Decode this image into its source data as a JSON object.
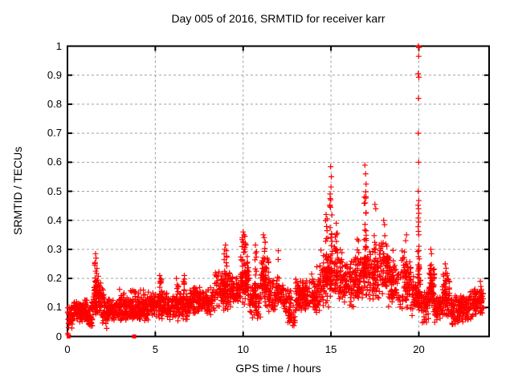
{
  "chart_data": {
    "type": "scatter",
    "title": "Day 005 of 2016, SRMTID for receiver karr",
    "xlabel": "GPS time / hours",
    "ylabel": "SRMTID / TECUs",
    "xlim": [
      0,
      24
    ],
    "ylim": [
      0,
      1
    ],
    "xticks": [
      {
        "value": 0,
        "label": "0"
      },
      {
        "value": 5,
        "label": "5"
      },
      {
        "value": 10,
        "label": "10"
      },
      {
        "value": 15,
        "label": "15"
      },
      {
        "value": 20,
        "label": "20"
      }
    ],
    "yticks": [
      {
        "value": 0.0,
        "label": "0"
      },
      {
        "value": 0.1,
        "label": "0.1"
      },
      {
        "value": 0.2,
        "label": "0.2"
      },
      {
        "value": 0.3,
        "label": "0.3"
      },
      {
        "value": 0.4,
        "label": "0.4"
      },
      {
        "value": 0.5,
        "label": "0.5"
      },
      {
        "value": 0.6,
        "label": "0.6"
      },
      {
        "value": 0.7,
        "label": "0.7"
      },
      {
        "value": 0.8,
        "label": "0.8"
      },
      {
        "value": 0.9,
        "label": "0.9"
      },
      {
        "value": 1.0,
        "label": "1"
      }
    ],
    "grid": true,
    "legend": null,
    "background": "#ffffff",
    "axis_color": "#000000",
    "grid_color": "#a0a0a0",
    "marker": {
      "shape": "plus",
      "color": "#ff0000",
      "size": 7
    },
    "points_model": {
      "seed": 20160105,
      "bands": [
        [
          0.0,
          0.35,
          0.02,
          0.11,
          40
        ],
        [
          0.35,
          1.45,
          0.05,
          0.13,
          130
        ],
        [
          1.2,
          1.5,
          0.02,
          0.07,
          12
        ],
        [
          1.45,
          1.8,
          0.07,
          0.22,
          45
        ],
        [
          1.8,
          2.15,
          0.07,
          0.19,
          40
        ],
        [
          2.0,
          2.35,
          0.02,
          0.09,
          15
        ],
        [
          2.15,
          2.65,
          0.06,
          0.13,
          55
        ],
        [
          2.65,
          4.6,
          0.055,
          0.135,
          240
        ],
        [
          2.9,
          4.5,
          0.125,
          0.165,
          22
        ],
        [
          4.6,
          5.6,
          0.06,
          0.155,
          115
        ],
        [
          5.6,
          6.9,
          0.05,
          0.15,
          145
        ],
        [
          6.9,
          8.4,
          0.075,
          0.17,
          175
        ],
        [
          8.4,
          9.3,
          0.09,
          0.23,
          110
        ],
        [
          9.3,
          9.85,
          0.1,
          0.21,
          60
        ],
        [
          9.85,
          10.35,
          0.11,
          0.28,
          75
        ],
        [
          10.35,
          11.0,
          0.06,
          0.2,
          70
        ],
        [
          11.0,
          11.45,
          0.1,
          0.28,
          55
        ],
        [
          11.45,
          12.3,
          0.08,
          0.2,
          85
        ],
        [
          12.3,
          12.75,
          0.07,
          0.17,
          40
        ],
        [
          12.55,
          12.95,
          0.02,
          0.11,
          25
        ],
        [
          12.95,
          14.35,
          0.08,
          0.2,
          165
        ],
        [
          14.35,
          14.95,
          0.1,
          0.3,
          70
        ],
        [
          14.95,
          15.65,
          0.12,
          0.32,
          75
        ],
        [
          15.65,
          16.35,
          0.1,
          0.26,
          80
        ],
        [
          16.35,
          16.8,
          0.12,
          0.3,
          50
        ],
        [
          16.8,
          17.2,
          0.14,
          0.32,
          45
        ],
        [
          17.2,
          17.75,
          0.12,
          0.32,
          60
        ],
        [
          17.75,
          18.25,
          0.14,
          0.33,
          55
        ],
        [
          18.25,
          18.85,
          0.1,
          0.28,
          60
        ],
        [
          18.85,
          19.55,
          0.08,
          0.3,
          65
        ],
        [
          19.55,
          19.9,
          0.07,
          0.22,
          32
        ],
        [
          19.85,
          20.15,
          0.08,
          0.2,
          30
        ],
        [
          20.15,
          20.55,
          0.04,
          0.16,
          48
        ],
        [
          20.55,
          20.9,
          0.08,
          0.26,
          48
        ],
        [
          20.9,
          21.35,
          0.04,
          0.15,
          55
        ],
        [
          21.35,
          21.75,
          0.06,
          0.22,
          52
        ],
        [
          21.75,
          22.4,
          0.04,
          0.14,
          75
        ],
        [
          22.4,
          22.85,
          0.05,
          0.15,
          58
        ],
        [
          22.85,
          23.45,
          0.06,
          0.17,
          60
        ],
        [
          23.45,
          23.7,
          0.08,
          0.18,
          25
        ]
      ],
      "columns": [
        [
          1.62,
          0.07,
          0.1,
          0.26,
          26
        ],
        [
          5.3,
          0.08,
          0.13,
          0.2,
          14
        ],
        [
          6.25,
          0.06,
          0.12,
          0.19,
          10
        ],
        [
          6.62,
          0.05,
          0.12,
          0.2,
          10
        ],
        [
          9.0,
          0.1,
          0.14,
          0.29,
          18
        ],
        [
          10.05,
          0.12,
          0.15,
          0.34,
          26
        ],
        [
          10.7,
          0.06,
          0.12,
          0.3,
          12
        ],
        [
          11.2,
          0.1,
          0.15,
          0.33,
          18
        ],
        [
          12.0,
          0.07,
          0.13,
          0.28,
          12
        ],
        [
          13.4,
          0.06,
          0.12,
          0.21,
          10
        ],
        [
          14.75,
          0.08,
          0.18,
          0.4,
          18
        ],
        [
          15.0,
          0.06,
          0.18,
          0.5,
          26
        ],
        [
          15.3,
          0.07,
          0.16,
          0.38,
          16
        ],
        [
          16.55,
          0.08,
          0.15,
          0.33,
          12
        ],
        [
          16.95,
          0.07,
          0.2,
          0.5,
          30
        ],
        [
          17.5,
          0.06,
          0.18,
          0.4,
          12
        ],
        [
          18.0,
          0.07,
          0.18,
          0.37,
          12
        ],
        [
          18.5,
          0.06,
          0.14,
          0.33,
          12
        ],
        [
          19.3,
          0.08,
          0.12,
          0.33,
          14
        ],
        [
          19.98,
          0.05,
          0.1,
          0.34,
          30
        ],
        [
          20.68,
          0.06,
          0.12,
          0.28,
          12
        ],
        [
          21.5,
          0.07,
          0.1,
          0.22,
          14
        ],
        [
          23.55,
          0.06,
          0.08,
          0.19,
          12
        ]
      ],
      "outliers": [
        [
          0.02,
          0.01
        ],
        [
          0.05,
          0.005
        ],
        [
          1.6,
          0.285
        ],
        [
          1.63,
          0.27
        ],
        [
          1.57,
          0.255
        ],
        [
          5.25,
          0.21
        ],
        [
          5.35,
          0.195
        ],
        [
          6.2,
          0.2
        ],
        [
          6.65,
          0.21
        ],
        [
          9.0,
          0.315
        ],
        [
          8.95,
          0.3
        ],
        [
          9.05,
          0.295
        ],
        [
          10.0,
          0.36
        ],
        [
          10.05,
          0.35
        ],
        [
          10.1,
          0.345
        ],
        [
          9.95,
          0.34
        ],
        [
          10.7,
          0.315
        ],
        [
          11.15,
          0.35
        ],
        [
          11.2,
          0.34
        ],
        [
          11.25,
          0.325
        ],
        [
          12.0,
          0.295
        ],
        [
          13.9,
          0.215
        ],
        [
          14.2,
          0.24
        ],
        [
          14.72,
          0.42
        ],
        [
          14.78,
          0.405
        ],
        [
          14.98,
          0.585
        ],
        [
          15.02,
          0.55
        ],
        [
          15.0,
          0.515
        ],
        [
          14.95,
          0.475
        ],
        [
          15.3,
          0.39
        ],
        [
          16.5,
          0.335
        ],
        [
          16.93,
          0.59
        ],
        [
          16.97,
          0.56
        ],
        [
          17.0,
          0.525
        ],
        [
          16.9,
          0.48
        ],
        [
          16.95,
          0.46
        ],
        [
          17.5,
          0.455
        ],
        [
          17.55,
          0.44
        ],
        [
          18.0,
          0.4
        ],
        [
          18.05,
          0.385
        ],
        [
          19.3,
          0.35
        ],
        [
          19.25,
          0.33
        ],
        [
          19.97,
          1.0
        ],
        [
          20.0,
          0.995
        ],
        [
          19.99,
          0.965
        ],
        [
          19.96,
          0.905
        ],
        [
          20.0,
          0.893
        ],
        [
          19.98,
          0.82
        ],
        [
          19.97,
          0.7
        ],
        [
          19.99,
          0.6
        ],
        [
          19.97,
          0.5
        ],
        [
          20.0,
          0.468
        ],
        [
          19.96,
          0.452
        ],
        [
          19.98,
          0.44
        ],
        [
          20.0,
          0.424
        ],
        [
          19.97,
          0.408
        ],
        [
          19.99,
          0.394
        ],
        [
          19.96,
          0.378
        ],
        [
          19.98,
          0.362
        ],
        [
          20.0,
          0.35
        ],
        [
          20.68,
          0.3
        ],
        [
          20.72,
          0.285
        ],
        [
          21.5,
          0.25
        ],
        [
          21.55,
          0.235
        ],
        [
          23.5,
          0.19
        ]
      ],
      "zero_squares": [
        [
          0.07,
          0.0
        ],
        [
          3.8,
          0.0
        ]
      ]
    }
  }
}
